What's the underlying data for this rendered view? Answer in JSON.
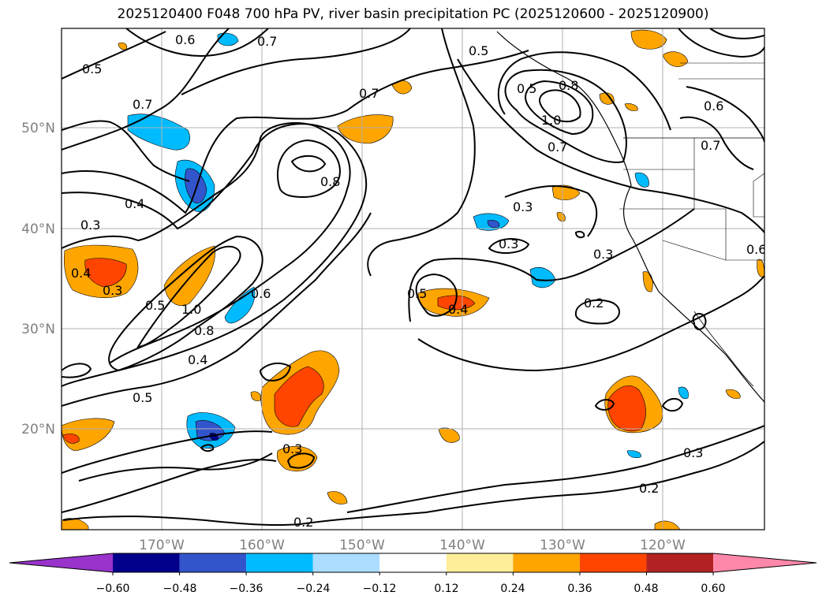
{
  "title": "2025120400 F048 700 hPa PV, river basin precipitation PC (2025120600 - 2025120900)",
  "map": {
    "lon_labels": [
      "170°W",
      "160°W",
      "150°W",
      "140°W",
      "130°W",
      "120°W"
    ],
    "lat_labels": [
      "50°N",
      "40°N",
      "30°N",
      "20°N"
    ],
    "contour_labels": [
      "0.5",
      "0.6",
      "0.7",
      "0.7",
      "0.7",
      "0.5",
      "0.5",
      "0.8",
      "1.0",
      "0.7",
      "0.6",
      "0.7",
      "0.8",
      "0.4",
      "0.3",
      "0.3",
      "0.4",
      "0.3",
      "0.3",
      "0.5",
      "1.0",
      "0.8",
      "0.6",
      "0.4",
      "0.5",
      "0.5",
      "0.4",
      "0.3",
      "0.2",
      "0.3",
      "0.3",
      "0.2",
      "0.2",
      "0.6"
    ]
  },
  "colorbar": {
    "ticks": [
      "−0.60",
      "−0.48",
      "−0.36",
      "−0.24",
      "−0.12",
      "0.12",
      "0.24",
      "0.36",
      "0.48",
      "0.60"
    ],
    "colors": [
      "#9933cc",
      "#00008b",
      "#3355cc",
      "#00bbff",
      "#aaddff",
      "#ffffff",
      "#ffee99",
      "#ffa500",
      "#ff4500",
      "#b22222",
      "#ff88aa"
    ]
  }
}
